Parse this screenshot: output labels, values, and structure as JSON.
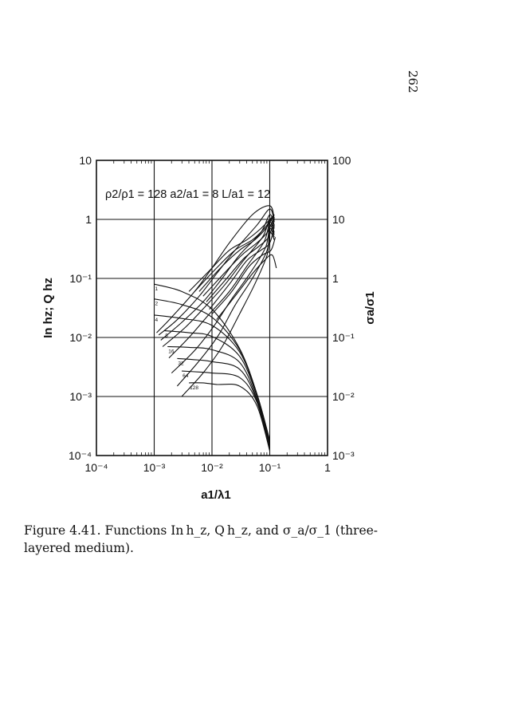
{
  "page_number": "262",
  "caption": {
    "prefix": "Figure 4.41.",
    "text": "Functions In h_z, Q h_z, and σ_a/σ_1 (three-layered medium)."
  },
  "chart_data": {
    "type": "line",
    "annotation": "ρ2/ρ1 = 128  a2/a1 = 8  L/a1 = 12",
    "xlabel": "a1/λ1",
    "ylabel_left": "In hz; Q hz",
    "ylabel_right": "σa/σ1",
    "x_scale": "log",
    "xlim": [
      0.0001,
      1
    ],
    "ylim_left": [
      0.0001,
      10
    ],
    "ylim_right": [
      0.001,
      100
    ],
    "x_ticks": [
      "10⁻⁴",
      "10⁻³",
      "10⁻²",
      "10⁻¹",
      "1"
    ],
    "y_ticks_left": [
      "10⁻⁴",
      "10⁻³",
      "10⁻²",
      "10⁻¹",
      "1",
      "10"
    ],
    "y_ticks_right": [
      "10⁻³",
      "10⁻²",
      "10⁻¹",
      "1",
      "10",
      "100"
    ],
    "grid": true,
    "family_parameter_labels": [
      "1",
      "2",
      "4",
      "8",
      "16",
      "32",
      "64",
      "128"
    ],
    "families": [
      {
        "name": "In hz",
        "series": [
          {
            "name": "1",
            "x": [
              0.001,
              0.003,
              0.01,
              0.03,
              0.06,
              0.1
            ],
            "y": [
              0.08,
              0.06,
              0.03,
              0.0065,
              0.0011,
              0.00018
            ]
          },
          {
            "name": "2",
            "x": [
              0.001,
              0.003,
              0.01,
              0.03,
              0.06,
              0.1
            ],
            "y": [
              0.045,
              0.036,
              0.022,
              0.0062,
              0.0011,
              0.00018
            ]
          },
          {
            "name": "4",
            "x": [
              0.001,
              0.003,
              0.01,
              0.03,
              0.06,
              0.1
            ],
            "y": [
              0.024,
              0.021,
              0.016,
              0.0057,
              0.00105,
              0.00017
            ]
          },
          {
            "name": "8",
            "x": [
              0.0015,
              0.004,
              0.01,
              0.03,
              0.06,
              0.1
            ],
            "y": [
              0.013,
              0.012,
              0.0104,
              0.0048,
              0.001,
              0.00016
            ]
          },
          {
            "name": "16",
            "x": [
              0.0017,
              0.004,
              0.01,
              0.03,
              0.06,
              0.1
            ],
            "y": [
              0.007,
              0.0068,
              0.0062,
              0.0038,
              0.0009,
              0.00015
            ]
          },
          {
            "name": "32",
            "x": [
              0.0025,
              0.005,
              0.01,
              0.03,
              0.06,
              0.1
            ],
            "y": [
              0.0044,
              0.0042,
              0.0039,
              0.0029,
              0.00085,
              0.00014
            ]
          },
          {
            "name": "64",
            "x": [
              0.003,
              0.006,
              0.01,
              0.03,
              0.06,
              0.1
            ],
            "y": [
              0.0027,
              0.0026,
              0.0025,
              0.0021,
              0.0008,
              0.00013
            ]
          },
          {
            "name": "128",
            "x": [
              0.004,
              0.007,
              0.012,
              0.03,
              0.06,
              0.1
            ],
            "y": [
              0.0017,
              0.0017,
              0.0016,
              0.0015,
              0.0007,
              0.00012
            ]
          }
        ]
      },
      {
        "name": "Q hz",
        "series": [
          {
            "name": "1",
            "x": [
              0.0011,
              0.002,
              0.005,
              0.01,
              0.02,
              0.05,
              0.1,
              0.12
            ],
            "y": [
              0.012,
              0.022,
              0.06,
              0.15,
              0.4,
              1.2,
              1.7,
              1.0
            ]
          },
          {
            "name": "2",
            "x": [
              0.0012,
              0.0025,
              0.006,
              0.012,
              0.025,
              0.06,
              0.1,
              0.12
            ],
            "y": [
              0.011,
              0.02,
              0.05,
              0.12,
              0.3,
              0.8,
              1.5,
              0.9
            ]
          },
          {
            "name": "4",
            "x": [
              0.0013,
              0.003,
              0.007,
              0.015,
              0.03,
              0.07,
              0.1,
              0.12
            ],
            "y": [
              0.009,
              0.018,
              0.04,
              0.1,
              0.25,
              0.6,
              1.2,
              0.8
            ]
          },
          {
            "name": "8",
            "x": [
              0.0014,
              0.0035,
              0.008,
              0.017,
              0.035,
              0.075,
              0.1,
              0.12
            ],
            "y": [
              0.007,
              0.015,
              0.035,
              0.08,
              0.2,
              0.5,
              1.0,
              0.7
            ]
          },
          {
            "name": "16",
            "x": [
              0.0018,
              0.004,
              0.009,
              0.02,
              0.04,
              0.08,
              0.1,
              0.12
            ],
            "y": [
              0.0045,
              0.01,
              0.025,
              0.06,
              0.16,
              0.42,
              0.9,
              0.6
            ]
          },
          {
            "name": "32",
            "x": [
              0.002,
              0.005,
              0.011,
              0.022,
              0.045,
              0.085,
              0.1,
              0.12
            ],
            "y": [
              0.0025,
              0.006,
              0.016,
              0.045,
              0.12,
              0.34,
              0.8,
              0.55
            ]
          },
          {
            "name": "64",
            "x": [
              0.0025,
              0.006,
              0.013,
              0.025,
              0.05,
              0.09,
              0.1,
              0.12
            ],
            "y": [
              0.0015,
              0.004,
              0.011,
              0.035,
              0.1,
              0.3,
              0.7,
              0.5
            ]
          },
          {
            "name": "128",
            "x": [
              0.003,
              0.007,
              0.015,
              0.03,
              0.055,
              0.09,
              0.1,
              0.12
            ],
            "y": [
              0.001,
              0.0025,
              0.007,
              0.025,
              0.08,
              0.25,
              0.6,
              0.45
            ]
          }
        ]
      },
      {
        "name": "σa/σ1",
        "axis": "right",
        "series": [
          {
            "name": "1",
            "x": [
              0.004,
              0.01,
              0.02,
              0.04,
              0.07,
              0.12
            ],
            "y": [
              0.6,
              1.5,
              3.0,
              4.5,
              7.0,
              12.0
            ]
          },
          {
            "name": "2",
            "x": [
              0.005,
              0.012,
              0.025,
              0.05,
              0.08,
              0.12
            ],
            "y": [
              0.6,
              1.5,
              3.0,
              4.5,
              7.0,
              12.0
            ]
          },
          {
            "name": "4",
            "x": [
              0.006,
              0.014,
              0.03,
              0.055,
              0.085,
              0.12
            ],
            "y": [
              0.6,
              1.5,
              3.0,
              4.5,
              7.0,
              12.0
            ]
          },
          {
            "name": "8",
            "x": [
              0.007,
              0.016,
              0.033,
              0.06,
              0.09,
              0.12
            ],
            "y": [
              0.5,
              1.2,
              2.5,
              4.0,
              6.0,
              11.0
            ]
          },
          {
            "name": "16",
            "x": [
              0.008,
              0.018,
              0.036,
              0.065,
              0.095,
              0.12
            ],
            "y": [
              0.4,
              1.0,
              2.2,
              3.5,
              5.0,
              10.0
            ]
          },
          {
            "name": "32",
            "x": [
              0.009,
              0.02,
              0.04,
              0.07,
              0.1,
              0.12
            ],
            "y": [
              0.3,
              0.8,
              2.0,
              3.0,
              4.0,
              8.0
            ]
          },
          {
            "name": "64",
            "x": [
              0.01,
              0.022,
              0.044,
              0.075,
              0.105,
              0.125
            ],
            "y": [
              0.25,
              0.6,
              1.6,
              2.5,
              3.0,
              5.0
            ]
          },
          {
            "name": "128",
            "x": [
              0.012,
              0.025,
              0.05,
              0.08,
              0.11,
              0.13
            ],
            "y": [
              0.2,
              0.5,
              1.2,
              2.0,
              2.5,
              1.5
            ]
          }
        ]
      }
    ]
  }
}
